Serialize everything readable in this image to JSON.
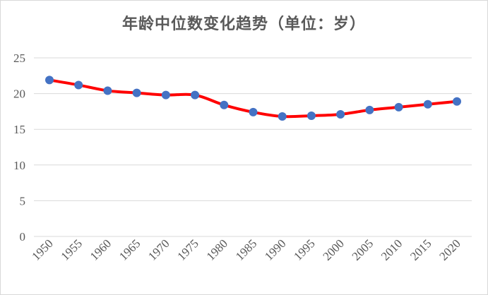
{
  "chart_data": {
    "type": "line",
    "title": "年龄中位数变化趋势（单位：岁）",
    "xlabel": "",
    "ylabel": "",
    "x": [
      "1950",
      "1955",
      "1960",
      "1965",
      "1970",
      "1975",
      "1980",
      "1985",
      "1990",
      "1995",
      "2000",
      "2005",
      "2010",
      "2015",
      "2020"
    ],
    "series": [
      {
        "values": [
          21.9,
          21.2,
          20.4,
          20.1,
          19.8,
          19.8,
          18.4,
          17.4,
          16.8,
          16.9,
          17.1,
          17.7,
          18.1,
          18.5,
          18.9
        ]
      }
    ],
    "ylim": [
      0,
      25
    ],
    "yticks": [
      "0",
      "5",
      "10",
      "15",
      "20",
      "25"
    ],
    "grid": true,
    "legend": "none",
    "line_color": "#ff0000",
    "marker_color": "#4472c4"
  }
}
